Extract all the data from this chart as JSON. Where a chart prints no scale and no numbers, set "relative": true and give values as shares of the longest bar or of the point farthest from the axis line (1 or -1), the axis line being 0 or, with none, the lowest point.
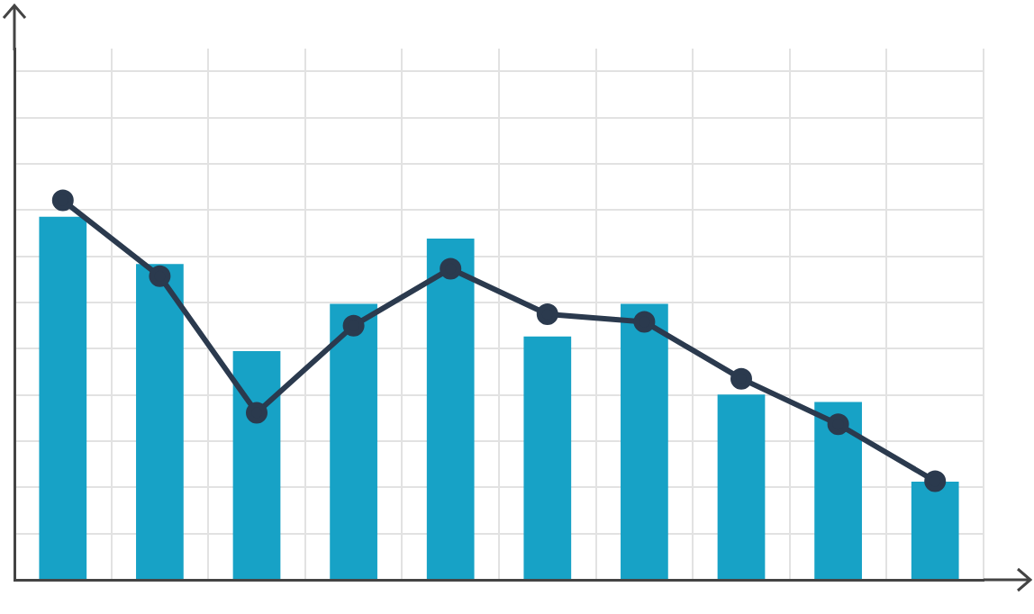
{
  "chart_data": [
    {
      "type": "bar",
      "relative": true,
      "grid": true,
      "categories": [
        null,
        null,
        null,
        null,
        null,
        null,
        null,
        null,
        null,
        null
      ],
      "color": "#17a2c6",
      "values": [
        1,
        0.87,
        0.63,
        0.76,
        0.94,
        0.67,
        0.76,
        0.51,
        0.49,
        0.27
      ]
    },
    {
      "type": "line",
      "relative": true,
      "marker": "circle",
      "categories": [
        null,
        null,
        null,
        null,
        null,
        null,
        null,
        null,
        null,
        null
      ],
      "color": "#2b3a4e",
      "values": [
        1,
        0.8,
        0.44,
        0.67,
        0.82,
        0.7,
        0.68,
        0.53,
        0.41,
        0.26
      ]
    }
  ]
}
